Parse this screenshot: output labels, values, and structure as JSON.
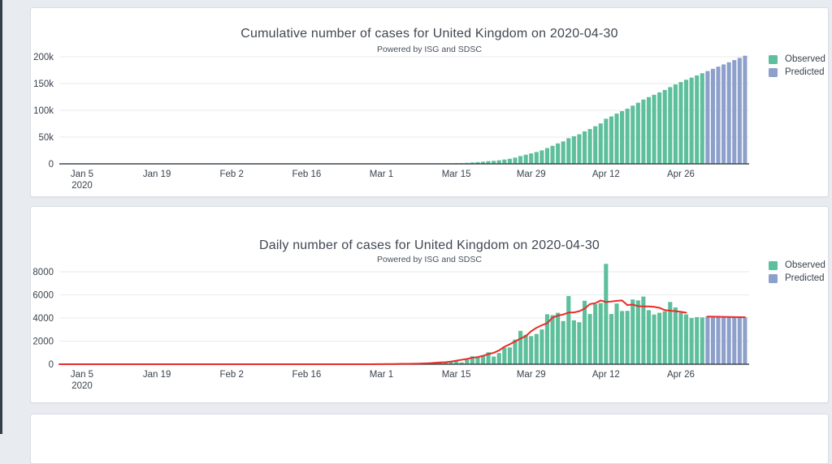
{
  "page": {
    "background_color": "#e8ebf0",
    "edge_strip_color": "#353d4a",
    "card_color": "#ffffff"
  },
  "chart_data": [
    {
      "type": "bar",
      "title": "Cumulative number of cases for United Kingdom on 2020-04-30",
      "subtitle": "Powered by ISG and SDSC",
      "x_start_date": "2020-01-05",
      "x_tick_day_indices": [
        0,
        14,
        28,
        42,
        56,
        70,
        84,
        98,
        112
      ],
      "x_tick_labels": [
        "Jan 5",
        "Jan 19",
        "Feb 2",
        "Feb 16",
        "Mar 1",
        "Mar 15",
        "Mar 29",
        "Apr 12",
        "Apr 26"
      ],
      "x_first_tick_second_line": "2020",
      "ylim": [
        0,
        210000
      ],
      "grid": true,
      "legend_position": "right-top",
      "y_ticks": {
        "values": [
          0,
          50000,
          100000,
          150000,
          200000
        ],
        "labels": [
          "0",
          "50k",
          "100k",
          "150k",
          "200k"
        ]
      },
      "series": [
        {
          "name": "Observed",
          "color": "#5dbf9b",
          "start_day_index": 0,
          "values": [
            0,
            0,
            0,
            0,
            0,
            0,
            0,
            0,
            0,
            0,
            0,
            0,
            0,
            0,
            0,
            0,
            0,
            0,
            0,
            0,
            0,
            0,
            0,
            0,
            0,
            0,
            2,
            2,
            2,
            2,
            2,
            2,
            3,
            3,
            3,
            4,
            8,
            8,
            8,
            9,
            9,
            9,
            9,
            9,
            9,
            9,
            9,
            9,
            9,
            13,
            13,
            13,
            15,
            16,
            20,
            23,
            36,
            40,
            52,
            86,
            115,
            163,
            206,
            270,
            316,
            370,
            453,
            587,
            794,
            1058,
            1388,
            1540,
            1947,
            2627,
            3270,
            3984,
            5019,
            5684,
            6651,
            8078,
            9530,
            11659,
            14544,
            17090,
            19523,
            22142,
            25151,
            29475,
            33719,
            38169,
            41904,
            47807,
            51609,
            55243,
            60734,
            65078,
            70273,
            75561,
            84242,
            88584,
            93836,
            98439,
            103056,
            108655,
            114180,
            120030,
            124706,
            129007,
            133458,
            138041,
            143427,
            148340,
            152803,
            157113,
            161109,
            165185,
            169235
          ]
        },
        {
          "name": "Predicted",
          "color": "#8da0cb",
          "start_day_index": 117,
          "values": [
            173385,
            177515,
            181625,
            185720,
            189800,
            193870,
            197930,
            201980
          ]
        }
      ]
    },
    {
      "type": "bar",
      "title": "Daily number of cases for United Kingdom on 2020-04-30",
      "subtitle": "Powered by ISG and SDSC",
      "x_start_date": "2020-01-05",
      "x_tick_day_indices": [
        0,
        14,
        28,
        42,
        56,
        70,
        84,
        98,
        112
      ],
      "x_tick_labels": [
        "Jan 5",
        "Jan 19",
        "Feb 2",
        "Feb 16",
        "Mar 1",
        "Mar 15",
        "Mar 29",
        "Apr 12",
        "Apr 26"
      ],
      "x_first_tick_second_line": "2020",
      "ylim": [
        0,
        9000
      ],
      "grid": true,
      "legend_position": "right-top",
      "y_ticks": {
        "values": [
          0,
          2000,
          4000,
          6000,
          8000
        ],
        "labels": [
          "0",
          "2000",
          "4000",
          "6000",
          "8000"
        ]
      },
      "series": [
        {
          "name": "Observed",
          "color": "#5dbf9b",
          "start_day_index": 0,
          "values": [
            0,
            0,
            0,
            0,
            0,
            0,
            0,
            0,
            0,
            0,
            0,
            0,
            0,
            0,
            0,
            0,
            0,
            0,
            0,
            0,
            0,
            0,
            0,
            0,
            0,
            0,
            2,
            0,
            0,
            0,
            0,
            0,
            1,
            0,
            0,
            1,
            4,
            0,
            0,
            1,
            0,
            0,
            0,
            0,
            0,
            0,
            0,
            0,
            0,
            4,
            0,
            0,
            2,
            1,
            4,
            3,
            13,
            4,
            12,
            34,
            29,
            48,
            43,
            64,
            46,
            54,
            83,
            134,
            207,
            264,
            330,
            152,
            407,
            680,
            643,
            714,
            1035,
            665,
            967,
            1427,
            1452,
            2129,
            2885,
            2546,
            2433,
            2619,
            3009,
            4324,
            4244,
            4450,
            3735,
            5903,
            3802,
            3634,
            5491,
            4344,
            5195,
            5288,
            8681,
            4342,
            5252,
            4603,
            4617,
            5599,
            5525,
            5850,
            4676,
            4301,
            4451,
            4583,
            5386,
            4913,
            4463,
            4310,
            3996,
            4076,
            4050
          ]
        },
        {
          "name": "Predicted",
          "color": "#8da0cb",
          "start_day_index": 117,
          "values": [
            4150,
            4130,
            4110,
            4095,
            4080,
            4070,
            4060,
            4050
          ]
        }
      ],
      "trend_line": {
        "name": "Trend",
        "color": "#ea2b28",
        "derived": "centered-moving-average",
        "window": 7,
        "gap_at_observed_predicted_boundary": true
      }
    }
  ]
}
